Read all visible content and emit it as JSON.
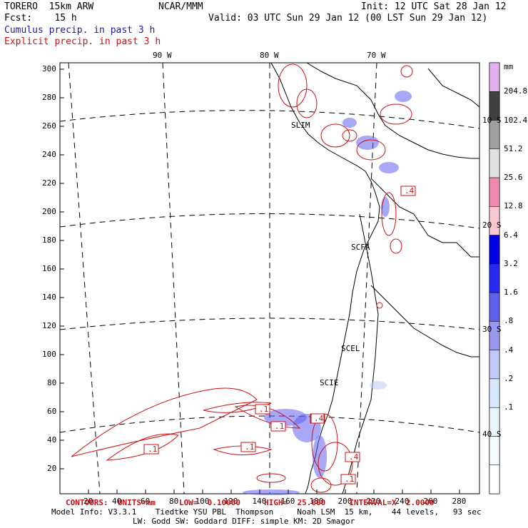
{
  "header": {
    "model": "TORERO  15km ARW",
    "org": "NCAR/MMM",
    "init": "Init: 12 UTC Sat 28 Jan 12",
    "fcst": "Fcst:    15 h",
    "valid": "Valid: 03 UTC Sun 29 Jan 12 (00 LST Sun 29 Jan 12)",
    "cumulus": "Cumulus precip. in past 3 h",
    "explicit": "Explicit precip. in past 3 h"
  },
  "colors": {
    "cumulus": "#1a1aa0",
    "explicit": "#cc1111"
  },
  "axes": {
    "lon_labels": [
      "90 W",
      "80 W",
      "70 W"
    ],
    "lat_labels": [
      "10 S",
      "20 S",
      "30 S",
      "40 S"
    ],
    "y_ticks": [
      "300",
      "280",
      "260",
      "240",
      "220",
      "200",
      "180",
      "160",
      "140",
      "120",
      "100",
      "80",
      "60",
      "40",
      "20"
    ],
    "x_ticks": [
      "20",
      "40",
      "60",
      "80",
      "100",
      "120",
      "140",
      "160",
      "180",
      "200",
      "220",
      "240",
      "260",
      "280"
    ]
  },
  "cities": [
    "SLIM",
    "SCFA",
    "SCEL",
    "SCIE"
  ],
  "contour_labels": [
    ".1",
    ".1",
    ".1",
    ".1",
    ".4",
    ".1",
    ".4",
    ".4",
    ".1"
  ],
  "colorbar": {
    "unit": "mm",
    "labels": [
      "204.8",
      "102.4",
      "51.2",
      "25.6",
      "12.8",
      "6.4",
      "3.2",
      "1.6",
      ".8",
      ".4",
      ".2",
      ".1"
    ],
    "colors": [
      "#e0b0f0",
      "#404040",
      "#a0a0a0",
      "#e0e0e0",
      "#f088b0",
      "#f8c8d0",
      "#0000e0",
      "#2828f0",
      "#6060f0",
      "#9898f0",
      "#c0c8f8",
      "#d8e8fc",
      "#e8f4fc",
      "#f4fbfd",
      "#ffffff"
    ]
  },
  "footer": {
    "contours": "CONTOURS:  UNITS=mm     LOW=  0.10000     HIGH=  25.600     INTERVAL=X  2.0000",
    "model_info": "Model Info: V3.3.1    Tiedtke YSU PBL  Thompson     Noah LSM  15 km,    44 levels,   93 sec",
    "model_info2": "LW: Godd SW: Goddard DIFF: simple KM: 2D Smagor"
  }
}
